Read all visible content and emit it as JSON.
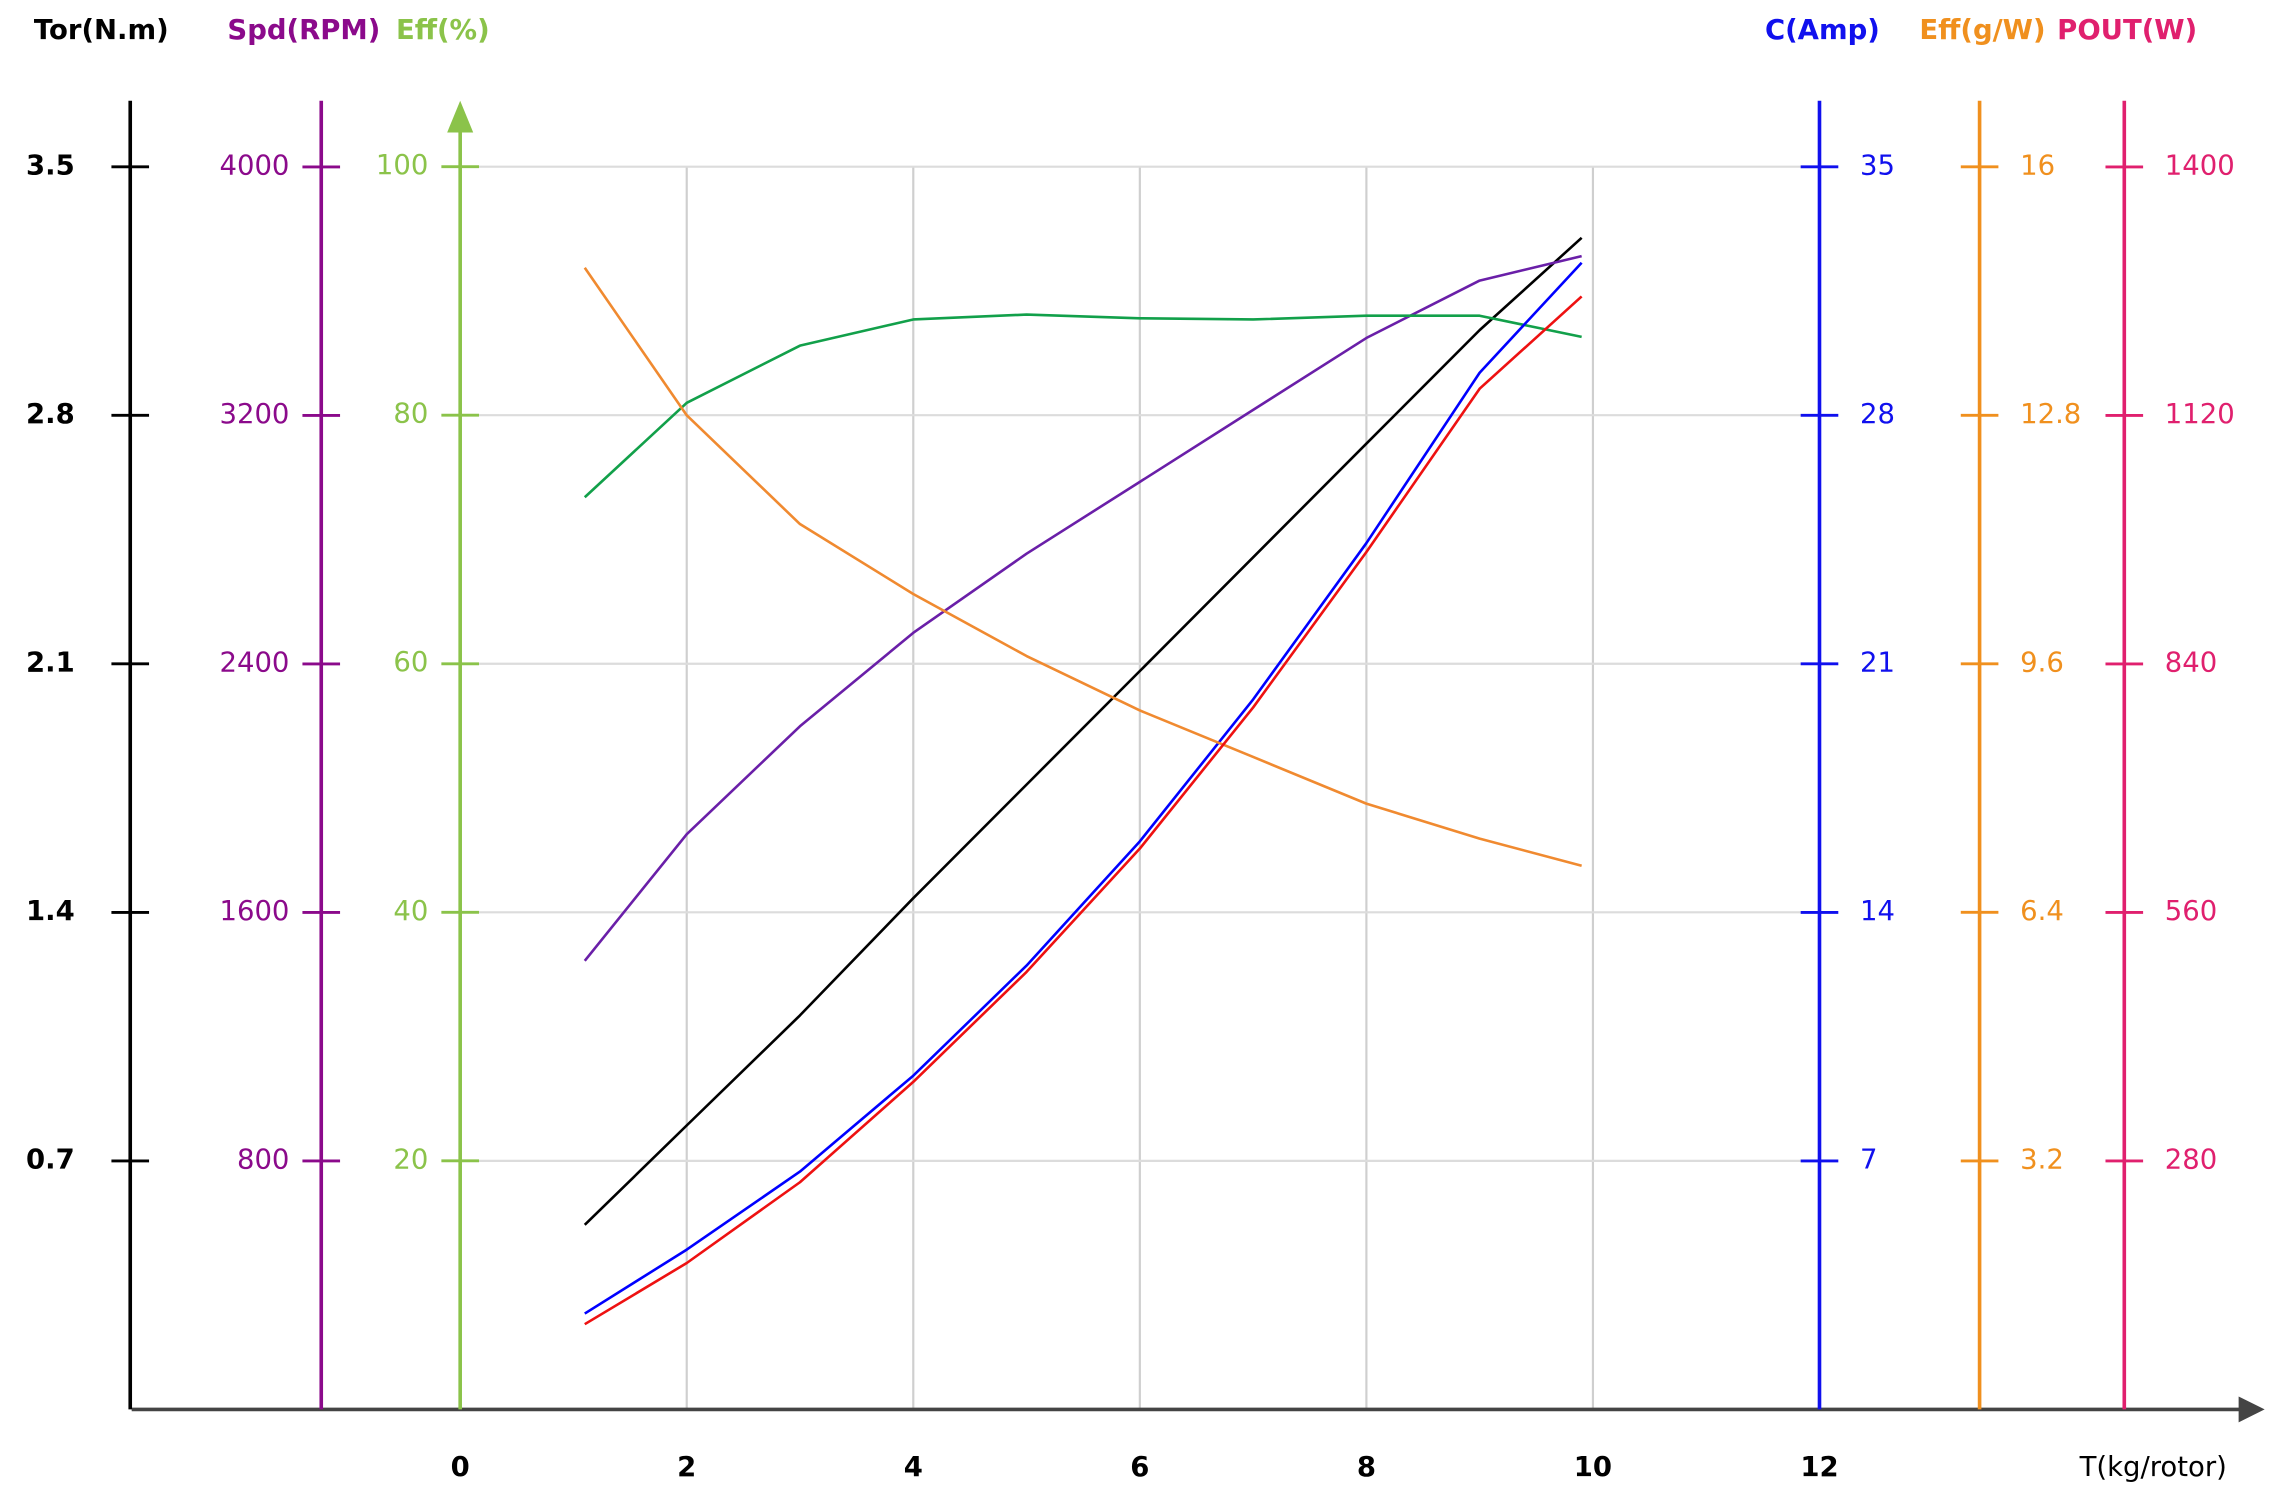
{
  "chart_data": {
    "type": "line",
    "xlabel": "T(kg/rotor)",
    "xlim": [
      -2.9,
      15.7
    ],
    "xticks": [
      0,
      2,
      4,
      6,
      8,
      10,
      12
    ],
    "grid": true,
    "axes": [
      {
        "title": "Tor(N.m)",
        "side": "left",
        "color": "#000000",
        "ylim": [
          0,
          3.686
        ],
        "yticks": [
          0.7,
          1.4,
          2.1,
          2.8,
          3.5
        ]
      },
      {
        "title": "Spd(RPM)",
        "side": "left",
        "color": "#8b0a8b",
        "ylim": [
          0,
          4213
        ],
        "yticks": [
          800,
          1600,
          2400,
          3200,
          4000
        ]
      },
      {
        "title": "Eff(%)",
        "side": "left",
        "color": "#8bc34a",
        "ylim": [
          0,
          105.3
        ],
        "yticks": [
          20,
          40,
          60,
          80,
          100
        ],
        "arrow": true
      },
      {
        "title": "C(Amp)",
        "side": "right",
        "color": "#1010ee",
        "ylim": [
          0,
          36.86
        ],
        "yticks": [
          7,
          14,
          21,
          28,
          35
        ]
      },
      {
        "title": "Eff(g/W)",
        "side": "right",
        "color": "#f0901e",
        "ylim": [
          0,
          16.85
        ],
        "yticks": [
          3.2,
          6.4,
          9.6,
          12.8,
          16
        ]
      },
      {
        "title": "POUT(W)",
        "side": "right",
        "color": "#e0206e",
        "ylim": [
          0,
          1474.5
        ],
        "yticks": [
          280,
          560,
          840,
          1120,
          1400
        ]
      }
    ],
    "x": [
      1.1,
      2,
      3,
      4,
      5,
      6,
      7,
      8,
      9,
      9.9
    ],
    "series": [
      {
        "axis": 0,
        "color": "#000000",
        "values": [
          0.52,
          0.8,
          1.11,
          1.44,
          1.76,
          2.08,
          2.4,
          2.72,
          3.04,
          3.3
        ]
      },
      {
        "axis": 1,
        "color": "#6a1fa8",
        "values": [
          1444,
          1852,
          2199,
          2500,
          2755,
          2986,
          3218,
          3449,
          3634,
          3713
        ]
      },
      {
        "axis": 2,
        "color": "#12a04a",
        "values": [
          73.4,
          81.0,
          85.6,
          87.7,
          88.1,
          87.8,
          87.7,
          88.0,
          88.0,
          86.3
        ]
      },
      {
        "axis": 3,
        "color": "#0000ff",
        "values": [
          2.7,
          4.5,
          6.7,
          9.4,
          12.5,
          16.0,
          20.0,
          24.4,
          29.2,
          32.3
        ]
      },
      {
        "axis": 4,
        "color": "#f08a30",
        "values": [
          14.7,
          12.8,
          11.4,
          10.5,
          9.7,
          9.0,
          8.4,
          7.8,
          7.35,
          7.0
        ]
      },
      {
        "axis": 5,
        "color": "#ee1111",
        "values": [
          96,
          165,
          256,
          369,
          493,
          632,
          791,
          966,
          1150,
          1254
        ]
      }
    ]
  }
}
